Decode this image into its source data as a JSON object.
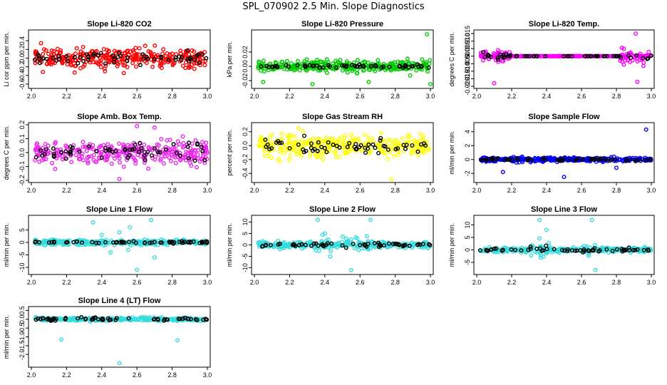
{
  "title": "SPL_070902  2.5 Min. Slope Diagnostics",
  "chart_data": [
    {
      "type": "scatter",
      "title": "Slope Li-820 CO2",
      "ylabel": "Li cor ppm per min.",
      "color": "#ff0000",
      "xlim": [
        2.0,
        3.0
      ],
      "ylim": [
        -0.65,
        0.6
      ],
      "xticks": [
        "2.0",
        "2.2",
        "2.4",
        "2.6",
        "2.8",
        "3.0"
      ],
      "yticks": [
        -0.6,
        -0.4,
        -0.2,
        0.0,
        0.2,
        0.4
      ],
      "ytick_labels": [
        "-0.6",
        "-0.4",
        "-0.2",
        "0.0",
        "0.2",
        "0.4"
      ],
      "main_spread": 0.22,
      "black_spread": 0.12,
      "outliers": []
    },
    {
      "type": "scatter",
      "title": "Slope Li-820 Pressure",
      "ylabel": "kPa per min.",
      "color": "#00cc00",
      "xlim": [
        2.0,
        3.0
      ],
      "ylim": [
        -0.028,
        0.048
      ],
      "xticks": [
        "2.0",
        "2.2",
        "2.4",
        "2.6",
        "2.8",
        "3.0"
      ],
      "yticks": [
        -0.02,
        0.0,
        0.02
      ],
      "ytick_labels": [
        "-0.02",
        "0.00",
        "0.02"
      ],
      "main_spread": 0.007,
      "black_spread": 0.002,
      "outliers": [
        {
          "x": 2.98,
          "y": 0.045
        },
        {
          "x": 2.33,
          "y": -0.025
        },
        {
          "x": 2.05,
          "y": -0.022
        },
        {
          "x": 2.65,
          "y": -0.022
        },
        {
          "x": 3.0,
          "y": -0.025
        }
      ]
    },
    {
      "type": "scatter",
      "title": "Slope Li-820 Temp.",
      "ylabel": "degrees C per min.",
      "color": "#ff00ff",
      "xlim": [
        2.0,
        3.0
      ],
      "ylim": [
        -0.02,
        0.016
      ],
      "xticks": [
        "2.0",
        "2.2",
        "2.4",
        "2.6",
        "2.8",
        "3.0"
      ],
      "yticks": [
        -0.02,
        -0.015,
        -0.01,
        -0.005,
        0.0,
        0.005,
        0.01,
        0.015
      ],
      "ytick_labels": [
        "-0.020",
        "-0.015",
        "-0.010",
        "-0.005",
        "0.000",
        "0.005",
        "0.010",
        "0.015"
      ],
      "main_spread": 0.0,
      "black_spread": 0.0,
      "bursts": [
        {
          "x0": 2.0,
          "x1": 2.2,
          "spread": 0.006
        },
        {
          "x0": 2.82,
          "x1": 3.0,
          "spread": 0.006
        }
      ],
      "outliers": [
        {
          "x": 2.1,
          "y": -0.018
        },
        {
          "x": 2.91,
          "y": 0.015
        },
        {
          "x": 2.92,
          "y": -0.017
        }
      ]
    },
    {
      "type": "scatter",
      "title": "Slope Amb. Box Temp.",
      "ylabel": "degrees C per min.",
      "color": "#ee22ee",
      "xlim": [
        2.0,
        3.0
      ],
      "ylim": [
        -0.2,
        0.2
      ],
      "xticks": [
        "2.0",
        "2.2",
        "2.4",
        "2.6",
        "2.8",
        "3.0"
      ],
      "yticks": [
        -0.2,
        -0.1,
        0.0,
        0.1,
        0.2
      ],
      "ytick_labels": [
        "-0.2",
        "-0.1",
        "0.0",
        "0.1",
        "0.2"
      ],
      "main_spread": 0.08,
      "black_spread": 0.06,
      "outliers": [
        {
          "x": 2.6,
          "y": 0.19
        },
        {
          "x": 2.7,
          "y": 0.18
        },
        {
          "x": 2.5,
          "y": -0.19
        }
      ]
    },
    {
      "type": "scatter",
      "title": "Slope Gas Stream RH",
      "ylabel": "percent per min.",
      "color": "#ffff00",
      "xlim": [
        2.0,
        3.0
      ],
      "ylim": [
        -0.5,
        0.3
      ],
      "xticks": [
        "2.0",
        "2.2",
        "2.4",
        "2.6",
        "2.8",
        "3.0"
      ],
      "yticks": [
        -0.4,
        -0.2,
        0.0,
        0.2
      ],
      "ytick_labels": [
        "-0.4",
        "-0.2",
        "0.0",
        "0.2"
      ],
      "main_spread": 0.14,
      "black_spread": 0.1,
      "outliers": [
        {
          "x": 2.78,
          "y": -0.48
        },
        {
          "x": 2.25,
          "y": 0.25
        }
      ]
    },
    {
      "type": "scatter",
      "title": "Slope Sample Flow",
      "ylabel": "ml/min per min.",
      "color": "#0000ff",
      "xlim": [
        2.0,
        3.0
      ],
      "ylim": [
        -3,
        5
      ],
      "xticks": [
        "2.0",
        "2.2",
        "2.4",
        "2.6",
        "2.8",
        "3.0"
      ],
      "yticks": [
        -2,
        0,
        2,
        4
      ],
      "ytick_labels": [
        "-2",
        "0",
        "2",
        "4"
      ],
      "main_spread": 0.25,
      "black_spread": 0.2,
      "outliers": [
        {
          "x": 2.97,
          "y": 4.3
        },
        {
          "x": 2.15,
          "y": -1.8
        },
        {
          "x": 2.5,
          "y": -2.5
        },
        {
          "x": 2.8,
          "y": -1.2
        }
      ]
    },
    {
      "type": "scatter",
      "title": "Slope Line 1 Flow",
      "ylabel": "ml/min per min.",
      "color": "#33dddd",
      "xlim": [
        2.0,
        3.0
      ],
      "ylim": [
        -12,
        10
      ],
      "xticks": [
        "2.0",
        "2.2",
        "2.4",
        "2.6",
        "2.8",
        "3.0"
      ],
      "yticks": [
        -10,
        -5,
        0,
        5
      ],
      "ytick_labels": [
        "-10",
        "-5",
        "0",
        "5"
      ],
      "main_spread": 0.9,
      "black_spread": 0.4,
      "outliers": [
        {
          "x": 2.35,
          "y": 8
        },
        {
          "x": 2.56,
          "y": 6
        },
        {
          "x": 2.68,
          "y": 9
        },
        {
          "x": 2.6,
          "y": -11
        },
        {
          "x": 2.45,
          "y": -4
        },
        {
          "x": 2.7,
          "y": -6
        },
        {
          "x": 2.5,
          "y": 4
        },
        {
          "x": 2.55,
          "y": -3
        },
        {
          "x": 2.4,
          "y": 3
        }
      ]
    },
    {
      "type": "scatter",
      "title": "Slope Line 2 Flow",
      "ylabel": "ml/min per min.",
      "color": "#33dddd",
      "xlim": [
        2.0,
        3.0
      ],
      "ylim": [
        -12,
        12
      ],
      "xticks": [
        "2.0",
        "2.2",
        "2.4",
        "2.6",
        "2.8",
        "3.0"
      ],
      "yticks": [
        -10,
        -5,
        0,
        5,
        10
      ],
      "ytick_labels": [
        "-10",
        "-5",
        "0",
        "5",
        "10"
      ],
      "main_spread": 1.2,
      "black_spread": 0.8,
      "bursts": [
        {
          "x0": 2.34,
          "x1": 2.7,
          "spread": 5
        }
      ],
      "outliers": [
        {
          "x": 2.36,
          "y": 11
        },
        {
          "x": 2.66,
          "y": 11
        },
        {
          "x": 2.55,
          "y": -11
        },
        {
          "x": 2.4,
          "y": 5
        }
      ]
    },
    {
      "type": "scatter",
      "title": "Slope Line 3 Flow",
      "ylabel": "ml/min per min.",
      "color": "#33dddd",
      "xlim": [
        2.0,
        3.0
      ],
      "ylim": [
        -9,
        13
      ],
      "xticks": [
        "2.0",
        "2.2",
        "2.4",
        "2.6",
        "2.8",
        "3.0"
      ],
      "yticks": [
        -5,
        0,
        5,
        10
      ],
      "ytick_labels": [
        "-5",
        "0",
        "5",
        "10"
      ],
      "main_spread": 0.8,
      "black_spread": 0.5,
      "bursts": [
        {
          "x0": 2.3,
          "x1": 2.42,
          "spread": 4
        },
        {
          "x0": 2.6,
          "x1": 2.72,
          "spread": 4
        }
      ],
      "outliers": [
        {
          "x": 2.36,
          "y": 12
        },
        {
          "x": 2.66,
          "y": 12
        },
        {
          "x": 2.4,
          "y": 8
        },
        {
          "x": 2.68,
          "y": -8
        }
      ]
    },
    {
      "type": "scatter",
      "title": "Slope Line 4 (LT) Flow",
      "ylabel": "ml/min per min.",
      "color": "#33dddd",
      "xlim": [
        2.0,
        3.0
      ],
      "ylim": [
        -2.6,
        0.6
      ],
      "xticks": [
        "2.0",
        "2.2",
        "2.4",
        "2.6",
        "2.8",
        "3.0"
      ],
      "yticks": [
        -2.0,
        -1.5,
        -1.0,
        -0.5,
        0.0,
        0.5
      ],
      "ytick_labels": [
        "-2.0",
        "-1.5",
        "-1.0",
        "-0.5",
        "0.0",
        "0.5"
      ],
      "main_spread": 0.08,
      "black_spread": 0.08,
      "outliers": [
        {
          "x": 2.17,
          "y": -1.15
        },
        {
          "x": 2.83,
          "y": -1.2
        },
        {
          "x": 2.5,
          "y": -2.5
        }
      ]
    }
  ]
}
